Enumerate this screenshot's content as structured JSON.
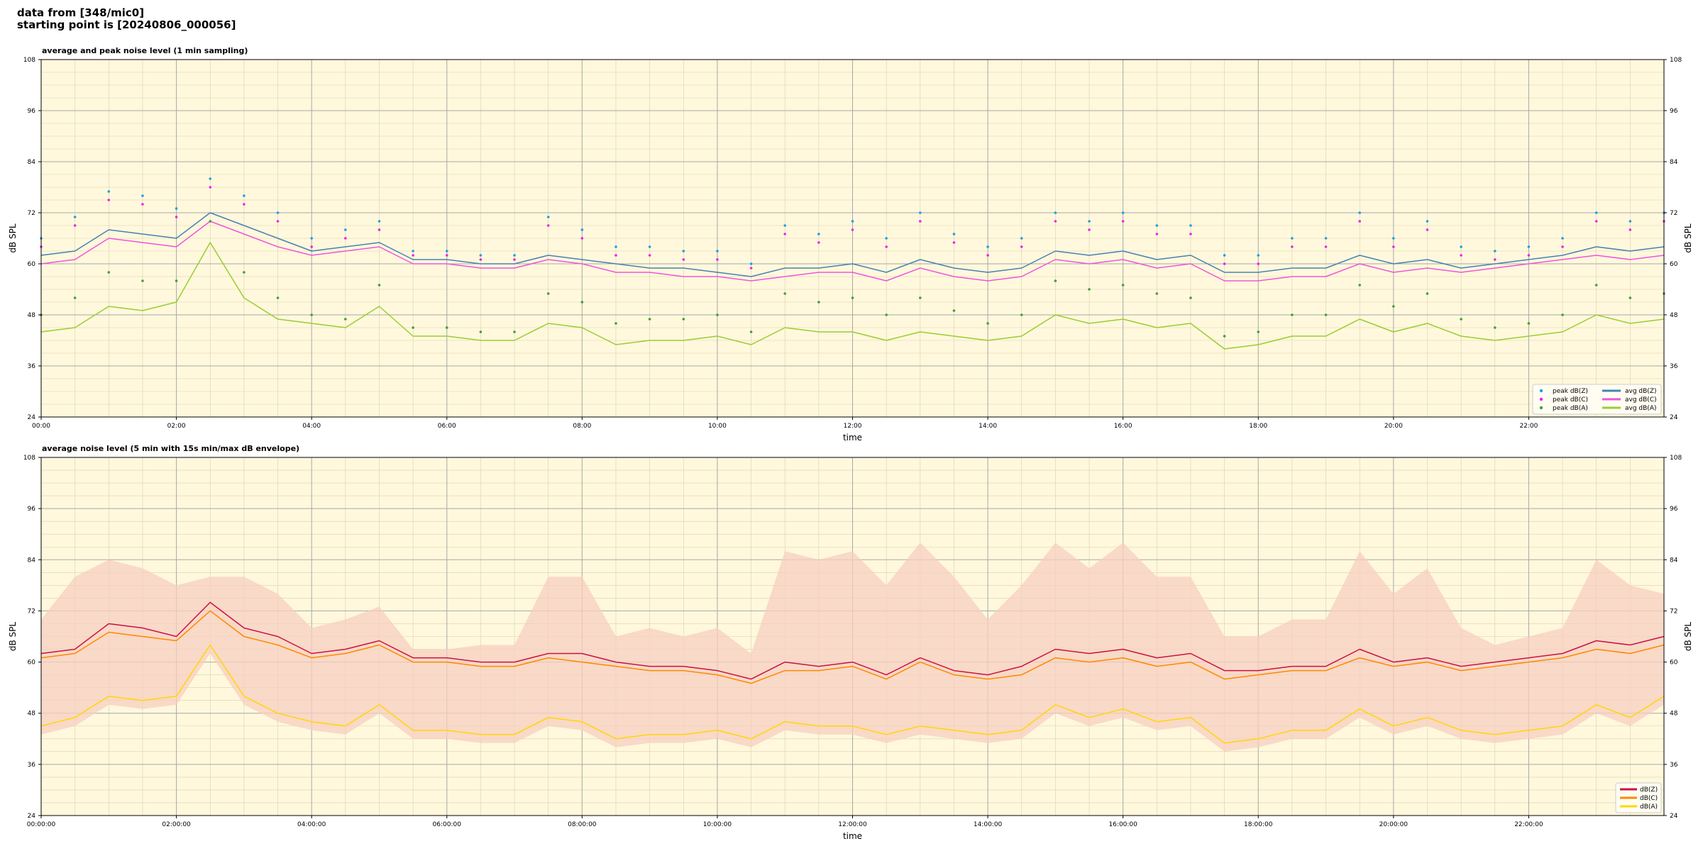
{
  "header": {
    "line1": "data from [348/mic0]",
    "line2": "starting point is [20240806_000056]"
  },
  "chart_data": [
    {
      "type": "line",
      "title": "average and peak noise level (1 min sampling)",
      "xlabel": "time",
      "ylabel": "dB SPL",
      "ylabel_right": "dB SPL",
      "xlim_hours": [
        0,
        24
      ],
      "ylim": [
        24,
        108
      ],
      "yticks": [
        24,
        36,
        48,
        60,
        72,
        84,
        96,
        108
      ],
      "xtick_labels": [
        "00:00",
        "02:00",
        "04:00",
        "06:00",
        "08:00",
        "10:00",
        "12:00",
        "14:00",
        "16:00",
        "18:00",
        "20:00",
        "22:00"
      ],
      "grid": true,
      "legend_position": "bottom-right",
      "x": [
        0,
        0.5,
        1,
        1.5,
        2,
        2.5,
        3,
        3.5,
        4,
        4.5,
        5,
        5.5,
        6,
        6.5,
        7,
        7.5,
        8,
        8.5,
        9,
        9.5,
        10,
        10.5,
        11,
        11.5,
        12,
        12.5,
        13,
        13.5,
        14,
        14.5,
        15,
        15.5,
        16,
        16.5,
        17,
        17.5,
        18,
        18.5,
        19,
        19.5,
        20,
        20.5,
        21,
        21.5,
        22,
        22.5,
        23,
        23.5,
        24
      ],
      "series": [
        {
          "name": "avg dB(Z)",
          "color": "#4682b4",
          "kind": "line",
          "values": [
            62,
            63,
            68,
            67,
            66,
            72,
            69,
            66,
            63,
            64,
            65,
            61,
            61,
            60,
            60,
            62,
            61,
            60,
            59,
            59,
            58,
            57,
            59,
            59,
            60,
            58,
            61,
            59,
            58,
            59,
            63,
            62,
            63,
            61,
            62,
            58,
            58,
            59,
            59,
            62,
            60,
            61,
            59,
            60,
            61,
            62,
            64,
            63,
            64
          ]
        },
        {
          "name": "avg dB(C)",
          "color": "#ee55dd",
          "kind": "line",
          "values": [
            60,
            61,
            66,
            65,
            64,
            70,
            67,
            64,
            62,
            63,
            64,
            60,
            60,
            59,
            59,
            61,
            60,
            58,
            58,
            57,
            57,
            56,
            57,
            58,
            58,
            56,
            59,
            57,
            56,
            57,
            61,
            60,
            61,
            59,
            60,
            56,
            56,
            57,
            57,
            60,
            58,
            59,
            58,
            59,
            60,
            61,
            62,
            61,
            62
          ]
        },
        {
          "name": "avg dB(A)",
          "color": "#9acd32",
          "kind": "line",
          "values": [
            44,
            45,
            50,
            49,
            51,
            65,
            52,
            47,
            46,
            45,
            50,
            43,
            43,
            42,
            42,
            46,
            45,
            41,
            42,
            42,
            43,
            41,
            45,
            44,
            44,
            42,
            44,
            43,
            42,
            43,
            48,
            46,
            47,
            45,
            46,
            40,
            41,
            43,
            43,
            47,
            44,
            46,
            43,
            42,
            43,
            44,
            48,
            46,
            47
          ]
        },
        {
          "name": "peak dB(Z)",
          "color": "#1f9fe0",
          "kind": "scatter",
          "values": [
            66,
            71,
            77,
            76,
            73,
            80,
            76,
            72,
            66,
            68,
            70,
            63,
            63,
            62,
            62,
            71,
            68,
            64,
            64,
            63,
            63,
            60,
            69,
            67,
            70,
            66,
            72,
            67,
            64,
            66,
            72,
            70,
            72,
            69,
            69,
            62,
            62,
            66,
            66,
            72,
            66,
            70,
            64,
            63,
            64,
            66,
            72,
            70,
            72
          ]
        },
        {
          "name": "peak dB(C)",
          "color": "#ee22ee",
          "kind": "scatter",
          "values": [
            64,
            69,
            75,
            74,
            71,
            78,
            74,
            70,
            64,
            66,
            68,
            62,
            62,
            61,
            61,
            69,
            66,
            62,
            62,
            61,
            61,
            59,
            67,
            65,
            68,
            64,
            70,
            65,
            62,
            64,
            70,
            68,
            70,
            67,
            67,
            60,
            60,
            64,
            64,
            70,
            64,
            68,
            62,
            61,
            62,
            64,
            70,
            68,
            70
          ]
        },
        {
          "name": "peak dB(A)",
          "color": "#3f9f3f",
          "kind": "scatter",
          "values": [
            48,
            52,
            58,
            56,
            56,
            70,
            58,
            52,
            48,
            47,
            55,
            45,
            45,
            44,
            44,
            53,
            51,
            46,
            47,
            47,
            48,
            44,
            53,
            51,
            52,
            48,
            52,
            49,
            46,
            48,
            56,
            54,
            55,
            53,
            52,
            43,
            44,
            48,
            48,
            55,
            50,
            53,
            47,
            45,
            46,
            48,
            55,
            52,
            53
          ]
        }
      ]
    },
    {
      "type": "line",
      "title": "average noise level (5 min with 15s min/max dB envelope)",
      "xlabel": "time",
      "ylabel": "dB SPL",
      "ylabel_right": "dB SPL",
      "xlim_hours": [
        0,
        24
      ],
      "ylim": [
        24,
        108
      ],
      "yticks": [
        24,
        36,
        48,
        60,
        72,
        84,
        96,
        108
      ],
      "xtick_labels": [
        "00:00:00",
        "02:00:00",
        "04:00:00",
        "06:00:00",
        "08:00:00",
        "10:00:00",
        "12:00:00",
        "14:00:00",
        "16:00:00",
        "18:00:00",
        "20:00:00",
        "22:00:00"
      ],
      "grid": true,
      "legend_position": "bottom-right",
      "x": [
        0,
        0.5,
        1,
        1.5,
        2,
        2.5,
        3,
        3.5,
        4,
        4.5,
        5,
        5.5,
        6,
        6.5,
        7,
        7.5,
        8,
        8.5,
        9,
        9.5,
        10,
        10.5,
        11,
        11.5,
        12,
        12.5,
        13,
        13.5,
        14,
        14.5,
        15,
        15.5,
        16,
        16.5,
        17,
        17.5,
        18,
        18.5,
        19,
        19.5,
        20,
        20.5,
        21,
        21.5,
        22,
        22.5,
        23,
        23.5,
        24
      ],
      "envelope_max": [
        70,
        80,
        84,
        82,
        78,
        80,
        80,
        76,
        68,
        70,
        73,
        63,
        63,
        64,
        64,
        80,
        80,
        66,
        68,
        66,
        68,
        62,
        86,
        84,
        86,
        78,
        88,
        80,
        70,
        78,
        88,
        82,
        88,
        80,
        80,
        66,
        66,
        70,
        70,
        86,
        76,
        82,
        68,
        64,
        66,
        68,
        84,
        78,
        76
      ],
      "series": [
        {
          "name": "dB(Z)",
          "color": "#cc1144",
          "values": [
            62,
            63,
            69,
            68,
            66,
            74,
            68,
            66,
            62,
            63,
            65,
            61,
            61,
            60,
            60,
            62,
            62,
            60,
            59,
            59,
            58,
            56,
            60,
            59,
            60,
            57,
            61,
            58,
            57,
            59,
            63,
            62,
            63,
            61,
            62,
            58,
            58,
            59,
            59,
            63,
            60,
            61,
            59,
            60,
            61,
            62,
            65,
            64,
            66
          ]
        },
        {
          "name": "dB(C)",
          "color": "#ff8800",
          "values": [
            61,
            62,
            67,
            66,
            65,
            72,
            66,
            64,
            61,
            62,
            64,
            60,
            60,
            59,
            59,
            61,
            60,
            59,
            58,
            58,
            57,
            55,
            58,
            58,
            59,
            56,
            60,
            57,
            56,
            57,
            61,
            60,
            61,
            59,
            60,
            56,
            57,
            58,
            58,
            61,
            59,
            60,
            58,
            59,
            60,
            61,
            63,
            62,
            64
          ]
        },
        {
          "name": "dB(A)",
          "color": "#ffd700",
          "values": [
            45,
            47,
            52,
            51,
            52,
            64,
            52,
            48,
            46,
            45,
            50,
            44,
            44,
            43,
            43,
            47,
            46,
            42,
            43,
            43,
            44,
            42,
            46,
            45,
            45,
            43,
            45,
            44,
            43,
            44,
            50,
            47,
            49,
            46,
            47,
            41,
            42,
            44,
            44,
            49,
            45,
            47,
            44,
            43,
            44,
            45,
            50,
            47,
            52
          ]
        }
      ]
    }
  ]
}
